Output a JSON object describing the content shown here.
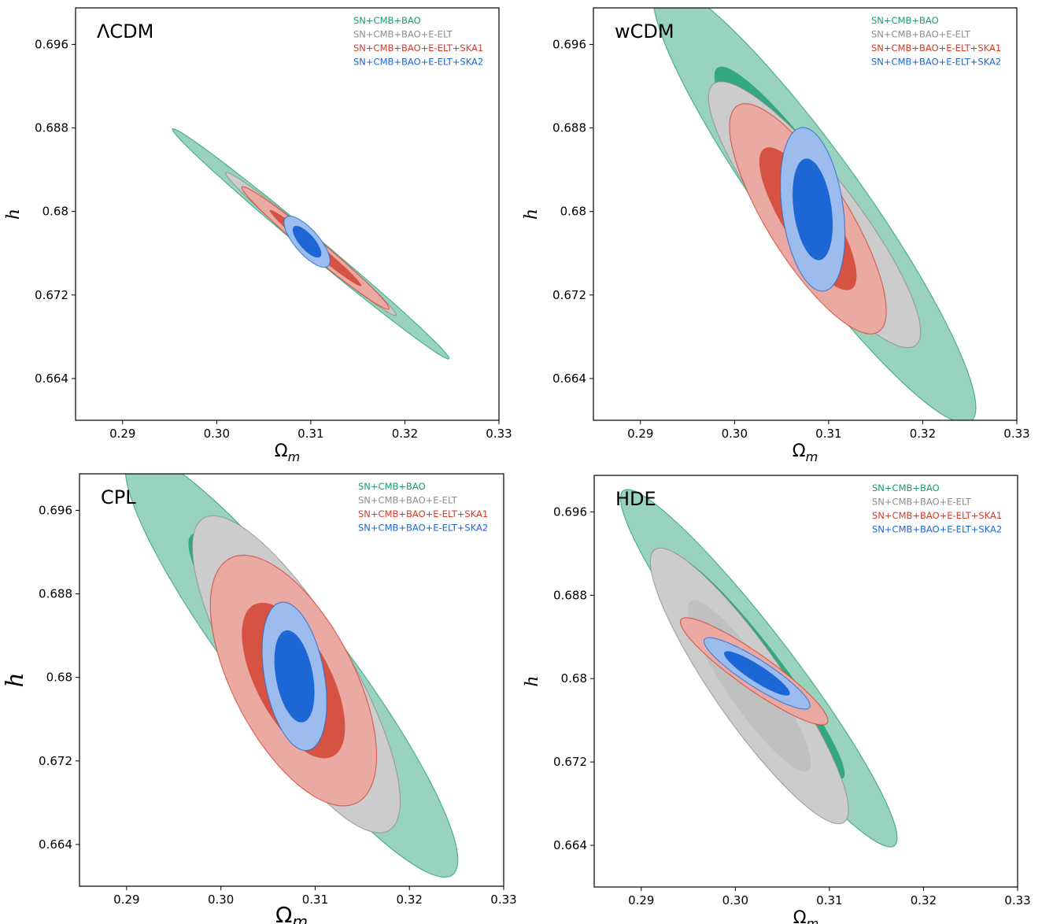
{
  "chart_data": [
    {
      "type": "contour",
      "title": "ΛCDM",
      "xlabel": "Ωm",
      "ylabel": "h",
      "xlim": [
        0.285,
        0.33
      ],
      "ylim": [
        0.66,
        0.6995
      ],
      "xticks": [
        "0.29",
        "0.30",
        "0.31",
        "0.32",
        "0.33"
      ],
      "yticks": [
        "0.664",
        "0.672",
        "0.68",
        "0.688",
        "0.696"
      ],
      "legend_position": "top-right",
      "series": [
        {
          "name": "SN+CMB+BAO",
          "color": "#179b6c",
          "center": [
            0.31,
            0.6769
          ],
          "sigma_x": 0.006,
          "sigma_y": 0.0045,
          "correlation": -0.995
        },
        {
          "name": "SN+CMB+BAO+E-ELT",
          "color": "#8c8c8c",
          "center": [
            0.31,
            0.6769
          ],
          "sigma_x": 0.0037,
          "sigma_y": 0.0028,
          "correlation": -0.99
        },
        {
          "name": "SN+CMB+BAO+E-ELT+SKA1",
          "color": "#d03c2b",
          "center": [
            0.3105,
            0.6765
          ],
          "sigma_x": 0.0032,
          "sigma_y": 0.0024,
          "correlation": -0.985
        },
        {
          "name": "SN+CMB+BAO+E-ELT+SKA2",
          "color": "#1d66d6",
          "center": [
            0.3096,
            0.6771
          ],
          "sigma_x": 0.001,
          "sigma_y": 0.001,
          "correlation": -0.75
        }
      ]
    },
    {
      "type": "contour",
      "title": "wCDM",
      "xlabel": "Ωm",
      "ylabel": "h",
      "xlim": [
        0.285,
        0.33
      ],
      "ylim": [
        0.66,
        0.6995
      ],
      "xticks": [
        "0.29",
        "0.30",
        "0.31",
        "0.32",
        "0.33"
      ],
      "yticks": [
        "0.664",
        "0.672",
        "0.68",
        "0.688",
        "0.696"
      ],
      "legend_position": "top-right",
      "series": [
        {
          "name": "SN+CMB+BAO",
          "color": "#179b6c",
          "center": [
            0.3085,
            0.6808
          ],
          "sigma_x": 0.007,
          "sigma_y": 0.0086,
          "correlation": -0.93
        },
        {
          "name": "SN+CMB+BAO+E-ELT",
          "color": "#8c8c8c",
          "center": [
            0.3085,
            0.6797
          ],
          "sigma_x": 0.0046,
          "sigma_y": 0.0052,
          "correlation": -0.88
        },
        {
          "name": "SN+CMB+BAO+E-ELT+SKA1",
          "color": "#d03c2b",
          "center": [
            0.3078,
            0.6793
          ],
          "sigma_x": 0.0034,
          "sigma_y": 0.0045,
          "correlation": -0.8
        },
        {
          "name": "SN+CMB+BAO+E-ELT+SKA2",
          "color": "#1d66d6",
          "center": [
            0.3083,
            0.6802
          ],
          "sigma_x": 0.0014,
          "sigma_y": 0.0032,
          "correlation": -0.3
        }
      ]
    },
    {
      "type": "contour",
      "title": "CPL",
      "xlabel": "Ωm",
      "ylabel": "h",
      "xlim": [
        0.285,
        0.33
      ],
      "ylim": [
        0.66,
        0.6995
      ],
      "xticks": [
        "0.29",
        "0.30",
        "0.31",
        "0.32",
        "0.33"
      ],
      "yticks": [
        "0.664",
        "0.672",
        "0.68",
        "0.688",
        "0.696"
      ],
      "legend_position": "top-right",
      "series": [
        {
          "name": "SN+CMB+BAO",
          "color": "#179b6c",
          "center": [
            0.3075,
            0.6812
          ],
          "sigma_x": 0.0072,
          "sigma_y": 0.0083,
          "correlation": -0.92
        },
        {
          "name": "SN+CMB+BAO+E-ELT",
          "color": "#8c8c8c",
          "center": [
            0.308,
            0.6803
          ],
          "sigma_x": 0.0045,
          "sigma_y": 0.0062,
          "correlation": -0.8
        },
        {
          "name": "SN+CMB+BAO+E-ELT+SKA1",
          "color": "#d03c2b",
          "center": [
            0.3077,
            0.6797
          ],
          "sigma_x": 0.0036,
          "sigma_y": 0.0049,
          "correlation": -0.6
        },
        {
          "name": "SN+CMB+BAO+E-ELT+SKA2",
          "color": "#1d66d6",
          "center": [
            0.3078,
            0.6801
          ],
          "sigma_x": 0.0014,
          "sigma_y": 0.0029,
          "correlation": -0.35
        }
      ]
    },
    {
      "type": "contour",
      "title": "HDE",
      "xlabel": "Ωm",
      "ylabel": "h",
      "xlim": [
        0.285,
        0.33
      ],
      "ylim": [
        0.66,
        0.6995
      ],
      "xticks": [
        "0.29",
        "0.30",
        "0.31",
        "0.32",
        "0.33"
      ],
      "yticks": [
        "0.664",
        "0.672",
        "0.68",
        "0.688",
        "0.696"
      ],
      "legend_position": "top-right",
      "series": [
        {
          "name": "SN+CMB+BAO",
          "color": "#179b6c",
          "center": [
            0.3025,
            0.681
          ],
          "sigma_x": 0.006,
          "sigma_y": 0.007,
          "correlation": -0.95
        },
        {
          "name": "SN+CMB+BAO+E-ELT",
          "color": "#8c8c8c",
          "center": [
            0.3015,
            0.6793
          ],
          "sigma_x": 0.0043,
          "sigma_y": 0.0054,
          "correlation": -0.9
        },
        {
          "name": "SN+CMB+BAO+E-ELT+SKA1",
          "color": "#d03c2b",
          "center": [
            0.302,
            0.6807
          ],
          "sigma_x": 0.0032,
          "sigma_y": 0.0021,
          "correlation": -0.92
        },
        {
          "name": "SN+CMB+BAO+E-ELT+SKA2",
          "color": "#1d66d6",
          "center": [
            0.3023,
            0.6805
          ],
          "sigma_x": 0.0023,
          "sigma_y": 0.0014,
          "correlation": -0.9
        }
      ]
    }
  ]
}
